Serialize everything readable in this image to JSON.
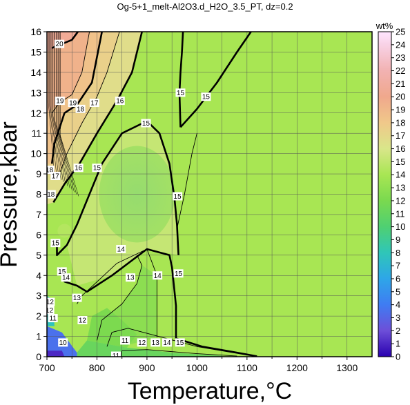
{
  "chart_data": {
    "type": "heatmap",
    "title": "Og-5+1_melt-Al2O3.d_H2O_3.5_PT, dz=0.2",
    "xlabel": "Temperature,°C",
    "ylabel": "Pressure,kbar",
    "xlim": [
      700,
      1350
    ],
    "ylim": [
      0,
      16
    ],
    "x_ticks": [
      "700",
      "800",
      "900",
      "1000",
      "1100",
      "1200",
      "1300"
    ],
    "y_ticks": [
      "0",
      "1",
      "2",
      "3",
      "4",
      "5",
      "6",
      "7",
      "8",
      "9",
      "10",
      "11",
      "12",
      "13",
      "14",
      "15",
      "16"
    ],
    "grid": true,
    "colorbar": {
      "label": "wt%",
      "min": 0,
      "max": 25,
      "ticks": [
        "0",
        "1",
        "2",
        "3",
        "4",
        "5",
        "6",
        "7",
        "8",
        "9",
        "10",
        "11",
        "12",
        "13",
        "14",
        "15",
        "16",
        "17",
        "18",
        "19",
        "20",
        "21",
        "22",
        "23",
        "24",
        "25"
      ],
      "stops": [
        {
          "value": 0,
          "color": "#2a00b0"
        },
        {
          "value": 2,
          "color": "#6d4fd8"
        },
        {
          "value": 4,
          "color": "#3f7cf2"
        },
        {
          "value": 6,
          "color": "#2ea6e8"
        },
        {
          "value": 8,
          "color": "#2fc6b8"
        },
        {
          "value": 10,
          "color": "#4fd072"
        },
        {
          "value": 12,
          "color": "#7ad94f"
        },
        {
          "value": 14,
          "color": "#a8e653"
        },
        {
          "value": 16,
          "color": "#d9e68a"
        },
        {
          "value": 18,
          "color": "#f0c88a"
        },
        {
          "value": 20,
          "color": "#f0a88c"
        },
        {
          "value": 22,
          "color": "#f2b2b2"
        },
        {
          "value": 24,
          "color": "#f8d2e6"
        },
        {
          "value": 25,
          "color": "#ffe6ff"
        }
      ]
    },
    "contour_labels": [
      {
        "value": "20",
        "x": 725,
        "y": 15.4
      },
      {
        "value": "19",
        "x": 726,
        "y": 12.6
      },
      {
        "value": "19",
        "x": 752,
        "y": 12.5
      },
      {
        "value": "18",
        "x": 767,
        "y": 12.2
      },
      {
        "value": "17",
        "x": 795,
        "y": 12.5
      },
      {
        "value": "16",
        "x": 846,
        "y": 12.6
      },
      {
        "value": "15",
        "x": 967,
        "y": 13.0
      },
      {
        "value": "15",
        "x": 1018,
        "y": 12.8
      },
      {
        "value": "15",
        "x": 898,
        "y": 11.5
      },
      {
        "value": "18",
        "x": 705,
        "y": 9.2
      },
      {
        "value": "17",
        "x": 717,
        "y": 8.9
      },
      {
        "value": "16",
        "x": 763,
        "y": 9.3
      },
      {
        "value": "18",
        "x": 708,
        "y": 8.0
      },
      {
        "value": "15",
        "x": 800,
        "y": 9.3
      },
      {
        "value": "15",
        "x": 961,
        "y": 7.9
      },
      {
        "value": "15",
        "x": 717,
        "y": 5.6
      },
      {
        "value": "14",
        "x": 848,
        "y": 5.3
      },
      {
        "value": "15",
        "x": 730,
        "y": 4.2
      },
      {
        "value": "14",
        "x": 738,
        "y": 3.9
      },
      {
        "value": "13",
        "x": 760,
        "y": 2.9
      },
      {
        "value": "13",
        "x": 867,
        "y": 3.9
      },
      {
        "value": "14",
        "x": 921,
        "y": 4.0
      },
      {
        "value": "15",
        "x": 963,
        "y": 4.1
      },
      {
        "value": "12",
        "x": 706,
        "y": 2.7
      },
      {
        "value": "12",
        "x": 705,
        "y": 2.3
      },
      {
        "value": "11",
        "x": 712,
        "y": 1.9
      },
      {
        "value": "12",
        "x": 771,
        "y": 1.8
      },
      {
        "value": "11",
        "x": 856,
        "y": 0.8
      },
      {
        "value": "12",
        "x": 890,
        "y": 0.7
      },
      {
        "value": "13",
        "x": 917,
        "y": 0.7
      },
      {
        "value": "14",
        "x": 940,
        "y": 0.7
      },
      {
        "value": "15",
        "x": 966,
        "y": 0.7
      },
      {
        "value": "10",
        "x": 732,
        "y": 0.7
      },
      {
        "value": "11",
        "x": 838,
        "y": 0.05
      }
    ],
    "contours": [
      {
        "value": 11,
        "major": false,
        "points": [
          [
            848,
            0
          ],
          [
            850,
            0.3
          ],
          [
            900,
            0.35
          ],
          [
            1000,
            0.15
          ],
          [
            1080,
            0.03
          ]
        ]
      },
      {
        "value": 12,
        "major": false,
        "points": [
          [
            820,
            0.5
          ],
          [
            830,
            1.2
          ],
          [
            862,
            1.4
          ],
          [
            1000,
            0.5
          ],
          [
            1100,
            0.08
          ]
        ]
      },
      {
        "value": 13,
        "major": false,
        "points": [
          [
            800,
            0.8
          ],
          [
            810,
            1.8
          ],
          [
            850,
            2.6
          ],
          [
            880,
            3.6
          ],
          [
            890,
            4.5
          ],
          [
            880,
            5.0
          ]
        ]
      },
      {
        "value": 14,
        "major": false,
        "points": [
          [
            760,
            2.6
          ],
          [
            770,
            3.0
          ],
          [
            840,
            4.6
          ],
          [
            900,
            5.3
          ],
          [
            920,
            4.0
          ],
          [
            920,
            0.95
          ]
        ]
      },
      {
        "value": 15,
        "major": true,
        "points": [
          [
            725,
            4.4
          ],
          [
            735,
            3.7
          ],
          [
            760,
            3.5
          ],
          [
            780,
            3.2
          ],
          [
            830,
            4.0
          ],
          [
            900,
            5.3
          ],
          [
            945,
            5.0
          ],
          [
            950,
            4.4
          ],
          [
            958,
            2.5
          ],
          [
            958,
            0.9
          ],
          [
            1010,
            0.5
          ],
          [
            1080,
            0.2
          ],
          [
            1120,
            0.02
          ]
        ]
      },
      {
        "value": 15,
        "major": true,
        "points": [
          [
            720,
            5.6
          ],
          [
            720,
            5.0
          ],
          [
            740,
            5.5
          ],
          [
            760,
            6.5
          ],
          [
            810,
            9.5
          ],
          [
            850,
            11.0
          ],
          [
            900,
            11.6
          ],
          [
            925,
            11.0
          ],
          [
            945,
            9.5
          ],
          [
            955,
            7.8
          ],
          [
            960,
            6.5
          ],
          [
            963,
            5.0
          ]
        ]
      },
      {
        "value": 15,
        "major": true,
        "points": [
          [
            967,
            11.3
          ],
          [
            965,
            13.0
          ],
          [
            967,
            14.0
          ],
          [
            970,
            15.0
          ],
          [
            972,
            16.0
          ]
        ]
      },
      {
        "value": 15,
        "major": true,
        "points": [
          [
            967,
            11.3
          ],
          [
            1000,
            12.2
          ],
          [
            1040,
            13.5
          ],
          [
            1080,
            15.0
          ],
          [
            1108,
            16.0
          ]
        ]
      },
      {
        "value": 16,
        "major": true,
        "points": [
          [
            713,
            7.6
          ],
          [
            735,
            8.5
          ],
          [
            765,
            9.5
          ],
          [
            800,
            11.0
          ],
          [
            840,
            12.6
          ],
          [
            870,
            14.0
          ],
          [
            890,
            16.0
          ]
        ]
      },
      {
        "value": 17,
        "major": false,
        "points": [
          [
            722,
            8.8
          ],
          [
            740,
            10.0
          ],
          [
            770,
            11.5
          ],
          [
            800,
            12.8
          ],
          [
            820,
            14.0
          ],
          [
            845,
            16.0
          ]
        ]
      },
      {
        "value": 18,
        "major": true,
        "points": [
          [
            710,
            9.5
          ],
          [
            715,
            10.5
          ],
          [
            735,
            12.0
          ],
          [
            760,
            12.4
          ],
          [
            790,
            13.5
          ],
          [
            810,
            16.0
          ]
        ]
      },
      {
        "value": 19,
        "major": false,
        "points": [
          [
            710,
            12.0
          ],
          [
            725,
            12.5
          ],
          [
            750,
            12.9
          ],
          [
            770,
            14.0
          ],
          [
            785,
            16.0
          ]
        ]
      },
      {
        "value": 20,
        "major": true,
        "points": [
          [
            710,
            15.2
          ],
          [
            730,
            15.4
          ],
          [
            750,
            15.6
          ],
          [
            762,
            16.0
          ]
        ]
      },
      {
        "value": 15,
        "major": false,
        "points": [
          [
            960,
            6.3
          ],
          [
            975,
            8.0
          ],
          [
            990,
            10.0
          ],
          [
            1000,
            11.0
          ]
        ]
      }
    ]
  }
}
